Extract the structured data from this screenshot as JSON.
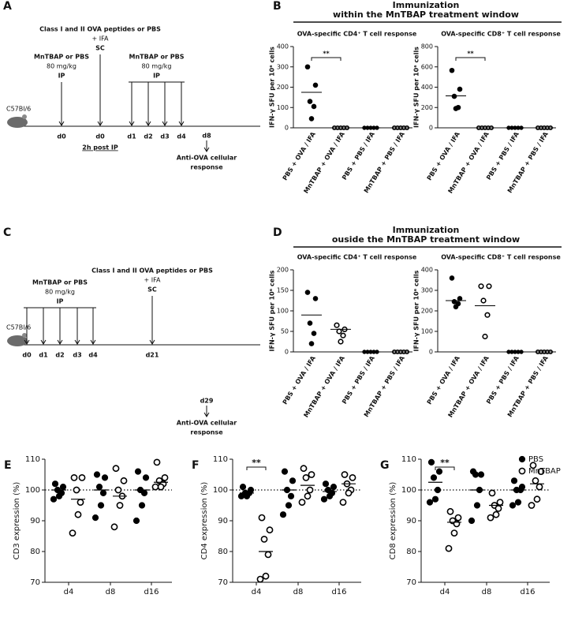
{
  "timelines": [
    {
      "label": "A",
      "strain": "C57Bl/6",
      "steps": [
        {
          "lines": [
            "MnTBAP or PBS",
            "80 mg/kg",
            "IP"
          ],
          "days": [
            "d0"
          ]
        },
        {
          "lines": [
            "Class I and II OVA peptides or PBS",
            "+ IFA",
            "SC"
          ],
          "days": [
            "d0"
          ],
          "note": "2h post IP"
        },
        {
          "lines": [
            "MnTBAP or PBS",
            "80 mg/kg",
            "IP"
          ],
          "days": [
            "d1",
            "d2",
            "d3",
            "d4"
          ]
        },
        {
          "days": [
            "d8"
          ],
          "readout": [
            "Anti-OVA cellular",
            "response"
          ]
        }
      ]
    },
    {
      "label": "C",
      "strain": "C57Bl/6",
      "steps": [
        {
          "lines": [
            "MnTBAP or PBS",
            "80 mg/kg",
            "IP"
          ],
          "days": [
            "d0",
            "d1",
            "d2",
            "d3",
            "d4"
          ]
        },
        {
          "lines": [
            "Class I and II OVA peptides or PBS",
            "+ IFA",
            "SC"
          ],
          "days": [
            "d21"
          ]
        },
        {
          "days": [
            "d29"
          ],
          "readout": [
            "Anti-OVA cellular",
            "response"
          ]
        }
      ]
    }
  ],
  "headers": [
    {
      "label": "B",
      "lines": [
        "Immunization",
        "within the MnTBAP treatment window"
      ]
    },
    {
      "label": "D",
      "lines": [
        "Immunization",
        "ouside the MnTBAP treatment window"
      ]
    }
  ],
  "chart_data": [
    {
      "type": "strip",
      "title": "OVA-specific CD4⁺ T cell response",
      "ylabel": "IFN-γ SFU per 10⁶ cells",
      "categories": [
        "PBS + OVA / IFA",
        "MnTBAP + OVA / IFA",
        "PBS + PBS / IFA",
        "MnTBAP + PBS / IFA"
      ],
      "filled": [
        true,
        false,
        true,
        false
      ],
      "color": "#000000",
      "points": [
        [
          300,
          210,
          130,
          105,
          45
        ],
        [
          0,
          0,
          0,
          0,
          0
        ],
        [
          0,
          0,
          0,
          0,
          0
        ],
        [
          0,
          0,
          0,
          0,
          0
        ]
      ],
      "means": [
        175,
        0,
        0,
        0
      ],
      "ylim": [
        0,
        400
      ],
      "yticks": [
        0,
        100,
        200,
        300,
        400
      ],
      "significance": {
        "label": "**",
        "between": [
          "PBS + OVA / IFA",
          "MnTBAP + OVA / IFA"
        ]
      }
    },
    {
      "type": "strip",
      "title": "OVA-specific CD8⁺ T cell response",
      "ylabel": "IFN-γ SFU per 10⁶ cells",
      "categories": [
        "PBS + OVA / IFA",
        "MnTBAP + OVA / IFA",
        "PBS + PBS / IFA",
        "MnTBAP + PBS / IFA"
      ],
      "filled": [
        true,
        false,
        true,
        false
      ],
      "color": "#000000",
      "points": [
        [
          565,
          380,
          310,
          200,
          190
        ],
        [
          0,
          0,
          0,
          0,
          0
        ],
        [
          0,
          0,
          0,
          0,
          0
        ],
        [
          0,
          0,
          0,
          0,
          0
        ]
      ],
      "means": [
        315,
        0,
        0,
        0
      ],
      "ylim": [
        0,
        800
      ],
      "yticks": [
        0,
        200,
        400,
        600,
        800
      ],
      "significance": {
        "label": "**",
        "between": [
          "PBS + OVA / IFA",
          "MnTBAP + OVA / IFA"
        ]
      }
    },
    {
      "type": "strip",
      "title": "OVA-specific CD4⁺ T cell response",
      "ylabel": "IFN-γ SFU per 10⁶ cells",
      "categories": [
        "PBS + OVA / IFA",
        "MnTBAP + OVA / IFA",
        "PBS + PBS / IFA",
        "MnTBAP + PBS / IFA"
      ],
      "filled": [
        true,
        false,
        true,
        false
      ],
      "color": "#000000",
      "points": [
        [
          145,
          130,
          70,
          45,
          20
        ],
        [
          65,
          55,
          50,
          40,
          25
        ],
        [
          0,
          0,
          0,
          0,
          0
        ],
        [
          0,
          0,
          0,
          0,
          0
        ]
      ],
      "means": [
        90,
        55,
        0,
        0
      ],
      "ylim": [
        0,
        200
      ],
      "yticks": [
        0,
        50,
        100,
        150,
        200
      ]
    },
    {
      "type": "strip",
      "title": "OVA-specific CD8⁺ T cell response",
      "ylabel": "IFN-γ SFU per 10⁶ cells",
      "categories": [
        "PBS + OVA / IFA",
        "MnTBAP + OVA / IFA",
        "PBS + PBS / IFA",
        "MnTBAP + PBS / IFA"
      ],
      "filled": [
        true,
        false,
        true,
        false
      ],
      "color": "#000000",
      "points": [
        [
          360,
          260,
          245,
          235,
          220
        ],
        [
          320,
          320,
          250,
          180,
          75
        ],
        [
          0,
          0,
          0,
          0,
          0
        ],
        [
          0,
          0,
          0,
          0,
          0
        ]
      ],
      "means": [
        250,
        225,
        0,
        0
      ],
      "ylim": [
        0,
        400
      ],
      "yticks": [
        0,
        100,
        200,
        300,
        400
      ]
    },
    {
      "type": "strip",
      "panel": "E",
      "ylabel": "CD3 expression (%)",
      "categories": [
        "d4",
        "d8",
        "d16"
      ],
      "color": "#000000",
      "series": [
        {
          "filled": true,
          "values": [
            [
              102,
              101,
              100,
              99,
              98,
              97
            ],
            [
              105,
              104,
              101,
              99,
              95,
              91
            ],
            [
              106,
              104,
              100,
              99,
              95,
              90
            ]
          ],
          "means": [
            100,
            100,
            100
          ]
        },
        {
          "filled": false,
          "values": [
            [
              104,
              104,
              100,
              96,
              92,
              86
            ],
            [
              107,
              103,
              100,
              98,
              95,
              88
            ],
            [
              109,
              104,
              103,
              102,
              101,
              101
            ]
          ],
          "means": [
            97,
            98,
            102.5
          ]
        }
      ],
      "ylim": [
        70,
        110
      ],
      "yticks": [
        70,
        80,
        90,
        100,
        110
      ],
      "ref_line": 100
    },
    {
      "type": "strip",
      "panel": "F",
      "ylabel": "CD4 expression (%)",
      "categories": [
        "d4",
        "d8",
        "d16"
      ],
      "color": "#000000",
      "series": [
        {
          "filled": true,
          "values": [
            [
              101,
              100,
              99,
              99,
              98,
              98
            ],
            [
              106,
              103,
              100,
              98,
              95,
              92
            ],
            [
              102,
              101,
              100,
              99,
              98,
              97
            ]
          ],
          "means": [
            99,
            100,
            99.5
          ]
        },
        {
          "filled": false,
          "values": [
            [
              91,
              87,
              84,
              79,
              72,
              71
            ],
            [
              107,
              105,
              104,
              100,
              98,
              96
            ],
            [
              105,
              104,
              102,
              100,
              99,
              96
            ]
          ],
          "means": [
            80,
            101.5,
            102
          ]
        }
      ],
      "ylim": [
        70,
        110
      ],
      "yticks": [
        70,
        80,
        90,
        100,
        110
      ],
      "ref_line": 100,
      "significance": {
        "label": "**",
        "category": "d4"
      }
    },
    {
      "type": "strip",
      "panel": "G",
      "ylabel": "CD8 expression (%)",
      "categories": [
        "d4",
        "d8",
        "d16"
      ],
      "color": "#000000",
      "series": [
        {
          "name": "PBS",
          "filled": true,
          "values": [
            [
              109,
              106,
              104,
              100,
              97,
              96
            ],
            [
              106,
              105,
              105,
              100,
              95,
              90
            ],
            [
              103,
              101,
              100,
              100,
              96,
              95
            ]
          ],
          "means": [
            102.5,
            100,
            100
          ]
        },
        {
          "name": "MnTBAP",
          "filled": false,
          "values": [
            [
              93,
              91,
              90,
              89,
              86,
              81
            ],
            [
              99,
              96,
              95,
              94,
              92,
              91
            ],
            [
              108,
              106,
              103,
              101,
              97,
              95
            ]
          ],
          "means": [
            89.5,
            95,
            102
          ]
        }
      ],
      "ylim": [
        70,
        110
      ],
      "yticks": [
        70,
        80,
        90,
        100,
        110
      ],
      "ref_line": 100,
      "significance": {
        "label": "**",
        "category": "d4"
      },
      "legend": "top-right"
    }
  ]
}
